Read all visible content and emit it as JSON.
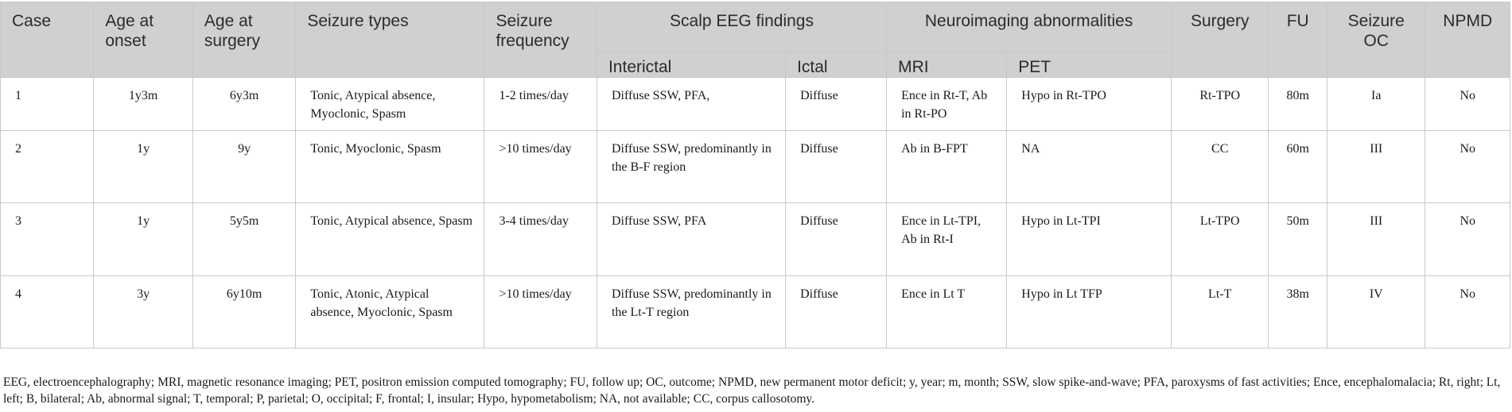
{
  "headers": {
    "case": "Case",
    "age_onset": "Age at onset",
    "age_surgery": "Age at surgery",
    "seizure_types": "Seizure types",
    "seizure_frequency": "Seizure frequency",
    "scalp_eeg": "Scalp EEG findings",
    "interictal": "Interictal",
    "ictal": "Ictal",
    "neuroimaging": "Neuroimaging abnormalities",
    "mri": "MRI",
    "pet": "PET",
    "surgery": "Surgery",
    "fu": "FU",
    "seizure_oc": "Seizure OC",
    "npmd": "NPMD"
  },
  "rows": [
    {
      "case": "1",
      "age_onset": "1y3m",
      "age_surgery": "6y3m",
      "seizure_types": "Tonic, Atypical absence, Myoclonic, Spasm",
      "frequency": "1-2 times/day",
      "interictal": "Diffuse SSW, PFA,",
      "ictal": "Diffuse",
      "mri": "Ence in Rt-T, Ab in Rt-PO",
      "pet": "Hypo in Rt-TPO",
      "surgery": "Rt-TPO",
      "fu": "80m",
      "outcome": "Ia",
      "npmd": "No"
    },
    {
      "case": "2",
      "age_onset": "1y",
      "age_surgery": "9y",
      "seizure_types": "Tonic, Myoclonic, Spasm",
      "frequency": ">10 times/day",
      "interictal": "Diffuse SSW, predominantly in the B-F region",
      "ictal": "Diffuse",
      "mri": "Ab in B-FPT",
      "pet": "NA",
      "surgery": "CC",
      "fu": "60m",
      "outcome": "III",
      "npmd": "No"
    },
    {
      "case": "3",
      "age_onset": "1y",
      "age_surgery": "5y5m",
      "seizure_types": "Tonic, Atypical absence, Spasm",
      "frequency": "3-4 times/day",
      "interictal": "Diffuse SSW, PFA",
      "ictal": "Diffuse",
      "mri": "Ence in Lt-TPI, Ab in Rt-I",
      "pet": "Hypo in Lt-TPI",
      "surgery": "Lt-TPO",
      "fu": "50m",
      "outcome": "III",
      "npmd": "No"
    },
    {
      "case": "4",
      "age_onset": "3y",
      "age_surgery": "6y10m",
      "seizure_types": "Tonic, Atonic, Atypical absence, Myoclonic, Spasm",
      "frequency": ">10 times/day",
      "interictal": "Diffuse SSW, predominantly in the Lt-T region",
      "ictal": "Diffuse",
      "mri": "Ence in Lt T",
      "pet": "Hypo in Lt TFP",
      "surgery": "Lt-T",
      "fu": "38m",
      "outcome": "IV",
      "npmd": "No"
    }
  ],
  "footnote": "EEG, electroencephalography; MRI, magnetic resonance imaging; PET, positron emission computed tomography; FU, follow up; OC, outcome; NPMD, new permanent motor deficit; y, year; m, month; SSW, slow spike-and-wave; PFA, paroxysms of fast activities; Ence, encephalomalacia; Rt, right; Lt, left; B, bilateral; Ab, abnormal signal; T, temporal; P, parietal; O, occipital; F, frontal; I, insular; Hypo, hypometabolism; NA, not available; CC, corpus callosotomy."
}
